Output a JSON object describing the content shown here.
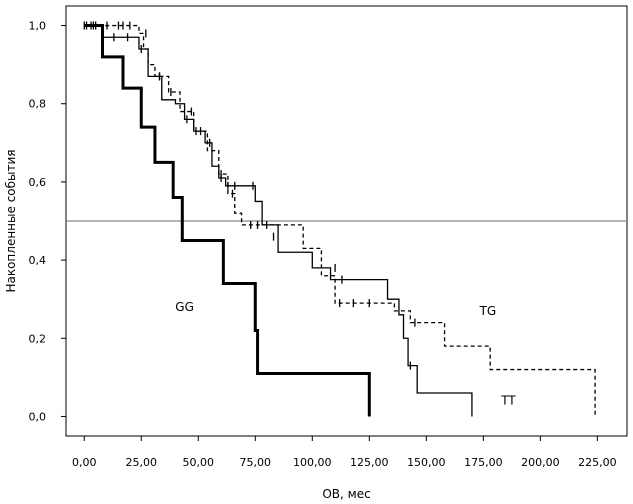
{
  "chart_data": {
    "type": "line",
    "subtype": "kaplan-meier-step",
    "xlabel": "ОВ, мес",
    "ylabel": "Накопленные события",
    "xlim": [
      -8,
      238
    ],
    "ylim": [
      -0.05,
      1.05
    ],
    "xticks": [
      0,
      25,
      50,
      75,
      100,
      125,
      150,
      175,
      200,
      225
    ],
    "xtick_labels": [
      "0,00",
      "25,00",
      "50,00",
      "75,00",
      "100,00",
      "125,00",
      "150,00",
      "175,00",
      "200,00",
      "225,00"
    ],
    "yticks": [
      0.0,
      0.2,
      0.4,
      0.6,
      0.8,
      1.0
    ],
    "ytick_labels": [
      "0,0",
      "0,2",
      "0,4",
      "0,6",
      "0,8",
      "1,0"
    ],
    "reference_line": {
      "y": 0.5
    },
    "grid": false,
    "series": [
      {
        "name": "TT",
        "style": "solid",
        "weight": "thin",
        "steps": [
          [
            0,
            1.0
          ],
          [
            8,
            0.97
          ],
          [
            24,
            0.94
          ],
          [
            28,
            0.87
          ],
          [
            34,
            0.81
          ],
          [
            40,
            0.8
          ],
          [
            44,
            0.76
          ],
          [
            48,
            0.73
          ],
          [
            53,
            0.7
          ],
          [
            56,
            0.64
          ],
          [
            59,
            0.61
          ],
          [
            62,
            0.59
          ],
          [
            75,
            0.55
          ],
          [
            78,
            0.49
          ],
          [
            85,
            0.42
          ],
          [
            100,
            0.38
          ],
          [
            108,
            0.35
          ],
          [
            133,
            0.3
          ],
          [
            138,
            0.26
          ],
          [
            140,
            0.2
          ],
          [
            142,
            0.13
          ],
          [
            146,
            0.06
          ],
          [
            170,
            0.0
          ]
        ],
        "end_x": 170,
        "censored": [
          [
            1,
            1.0
          ],
          [
            3,
            1.0
          ],
          [
            5,
            1.0
          ],
          [
            13,
            0.97
          ],
          [
            19,
            0.97
          ],
          [
            25,
            0.94
          ],
          [
            33,
            0.87
          ],
          [
            45,
            0.76
          ],
          [
            49,
            0.73
          ],
          [
            51,
            0.73
          ],
          [
            55,
            0.7
          ],
          [
            60,
            0.61
          ],
          [
            63,
            0.59
          ],
          [
            66,
            0.59
          ],
          [
            74,
            0.59
          ],
          [
            80,
            0.49
          ],
          [
            83,
            0.46
          ],
          [
            110,
            0.38
          ],
          [
            113,
            0.35
          ],
          [
            143,
            0.13
          ]
        ]
      },
      {
        "name": "TG",
        "style": "dashed",
        "weight": "thin",
        "steps": [
          [
            0,
            1.0
          ],
          [
            24,
            0.98
          ],
          [
            26,
            0.94
          ],
          [
            28,
            0.9
          ],
          [
            31,
            0.87
          ],
          [
            37,
            0.83
          ],
          [
            42,
            0.78
          ],
          [
            48,
            0.73
          ],
          [
            54,
            0.68
          ],
          [
            59,
            0.62
          ],
          [
            63,
            0.57
          ],
          [
            66,
            0.52
          ],
          [
            69,
            0.49
          ],
          [
            96,
            0.43
          ],
          [
            104,
            0.36
          ],
          [
            110,
            0.29
          ],
          [
            136,
            0.27
          ],
          [
            143,
            0.24
          ],
          [
            158,
            0.18
          ],
          [
            178,
            0.12
          ],
          [
            224,
            0.0
          ]
        ],
        "end_x": 224,
        "censored": [
          [
            0,
            1.0
          ],
          [
            4,
            1.0
          ],
          [
            10,
            1.0
          ],
          [
            15,
            1.0
          ],
          [
            17,
            1.0
          ],
          [
            20,
            1.0
          ],
          [
            27,
            0.98
          ],
          [
            33,
            0.87
          ],
          [
            38,
            0.83
          ],
          [
            47,
            0.78
          ],
          [
            60,
            0.62
          ],
          [
            65,
            0.57
          ],
          [
            73,
            0.49
          ],
          [
            76,
            0.49
          ],
          [
            112,
            0.29
          ],
          [
            118,
            0.29
          ],
          [
            125,
            0.29
          ],
          [
            145,
            0.24
          ]
        ]
      },
      {
        "name": "GG",
        "style": "solid",
        "weight": "thick",
        "steps": [
          [
            0,
            1.0
          ],
          [
            8,
            0.92
          ],
          [
            17,
            0.84
          ],
          [
            25,
            0.74
          ],
          [
            31,
            0.65
          ],
          [
            39,
            0.56
          ],
          [
            43,
            0.45
          ],
          [
            61,
            0.34
          ],
          [
            75,
            0.22
          ],
          [
            76,
            0.11
          ],
          [
            125,
            0.0
          ]
        ],
        "end_x": 125,
        "censored": []
      }
    ],
    "annotations": [
      {
        "text": "GG",
        "x": 44,
        "y": 0.27
      },
      {
        "text": "TG",
        "x": 177,
        "y": 0.26
      },
      {
        "text": "TT",
        "x": 186,
        "y": 0.03
      }
    ]
  }
}
